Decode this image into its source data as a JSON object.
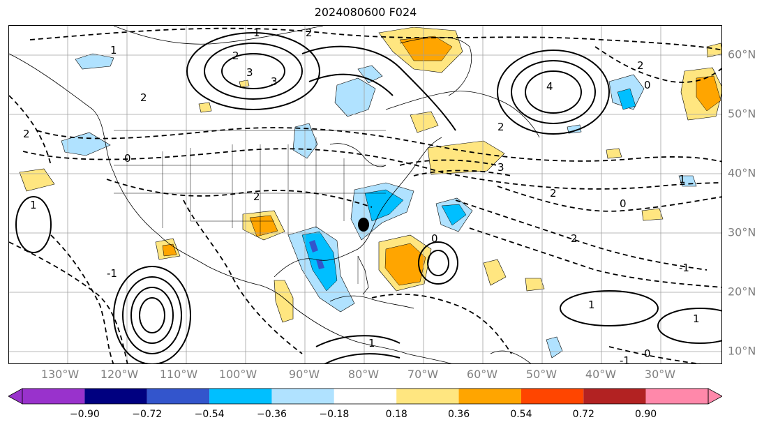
{
  "title": "2024080600 F024",
  "map": {
    "lon_labels": [
      "130°W",
      "120°W",
      "110°W",
      "100°W",
      "90°W",
      "80°W",
      "70°W",
      "60°W",
      "50°W",
      "40°W",
      "30°W"
    ],
    "lat_labels": [
      "60°N",
      "50°N",
      "40°N",
      "30°N",
      "20°N",
      "10°N"
    ],
    "contour_labels": [
      "1",
      "2",
      "3",
      "2",
      "1",
      "2",
      "4",
      "2",
      "3",
      "0",
      "2",
      "2",
      "0",
      "-1",
      "2",
      "1",
      "3",
      "0",
      "2",
      "1",
      "0",
      "1",
      "2",
      "-1",
      "1",
      "0",
      "-1",
      "1"
    ],
    "marker": "black-dot"
  },
  "colorbar": {
    "ticks": [
      "−0.90",
      "−0.72",
      "−0.54",
      "−0.36",
      "−0.18",
      "0.18",
      "0.36",
      "0.54",
      "0.72",
      "0.90"
    ],
    "colors": [
      "#9932cc",
      "#000080",
      "#3355cc",
      "#00bfff",
      "#b0e2ff",
      "#ffffff",
      "#ffe680",
      "#ffa500",
      "#ff4500",
      "#b22222",
      "#ff88aa"
    ],
    "extend": "both"
  }
}
